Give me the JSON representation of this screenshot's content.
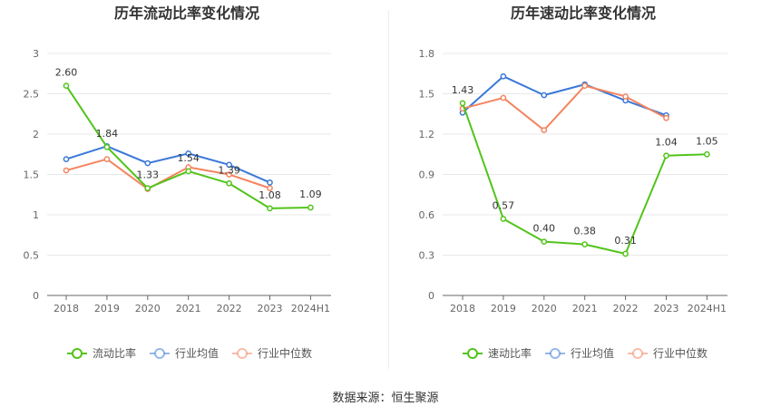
{
  "source_text": "数据来源：恒生聚源",
  "colors": {
    "ratio": "#52c41a",
    "avg": "#3a78d8",
    "median": "#f4845f"
  },
  "chart_data": [
    {
      "type": "line",
      "title": "历年流动比率变化情况",
      "categories": [
        "2018",
        "2019",
        "2020",
        "2021",
        "2022",
        "2023",
        "2024H1"
      ],
      "ylim": [
        0,
        3
      ],
      "yticks": [
        0,
        0.5,
        1,
        1.5,
        2,
        2.5,
        3
      ],
      "ytick_labels": [
        "0",
        "0.5",
        "1",
        "1.5",
        "2",
        "2.5",
        "3"
      ],
      "grid": true,
      "legend_position": "bottom",
      "series": [
        {
          "name": "流动比率",
          "color": "#52c41a",
          "values": [
            2.6,
            1.84,
            1.33,
            1.54,
            1.39,
            1.08,
            1.09
          ],
          "labels": [
            "2.60",
            "1.84",
            "1.33",
            "1.54",
            "1.39",
            "1.08",
            "1.09"
          ]
        },
        {
          "name": "行业均值",
          "color": "#3a78d8",
          "values": [
            1.69,
            1.85,
            1.64,
            1.76,
            1.62,
            1.4,
            null
          ]
        },
        {
          "name": "行业中位数",
          "color": "#f4845f",
          "values": [
            1.55,
            1.69,
            1.32,
            1.59,
            1.5,
            1.33,
            null
          ]
        }
      ]
    },
    {
      "type": "line",
      "title": "历年速动比率变化情况",
      "categories": [
        "2018",
        "2019",
        "2020",
        "2021",
        "2022",
        "2023",
        "2024H1"
      ],
      "ylim": [
        0,
        1.8
      ],
      "yticks": [
        0,
        0.3,
        0.6,
        0.9,
        1.2,
        1.5,
        1.8
      ],
      "ytick_labels": [
        "0",
        "0.3",
        "0.6",
        "0.9",
        "1.2",
        "1.5",
        "1.8"
      ],
      "grid": true,
      "legend_position": "bottom",
      "series": [
        {
          "name": "速动比率",
          "color": "#52c41a",
          "values": [
            1.43,
            0.57,
            0.4,
            0.38,
            0.31,
            1.04,
            1.05
          ],
          "labels": [
            "1.43",
            "0.57",
            "0.40",
            "0.38",
            "0.31",
            "1.04",
            "1.05"
          ]
        },
        {
          "name": "行业均值",
          "color": "#3a78d8",
          "values": [
            1.36,
            1.63,
            1.49,
            1.57,
            1.45,
            1.34,
            null
          ]
        },
        {
          "name": "行业中位数",
          "color": "#f4845f",
          "values": [
            1.39,
            1.47,
            1.23,
            1.56,
            1.48,
            1.32,
            null
          ]
        }
      ]
    }
  ]
}
